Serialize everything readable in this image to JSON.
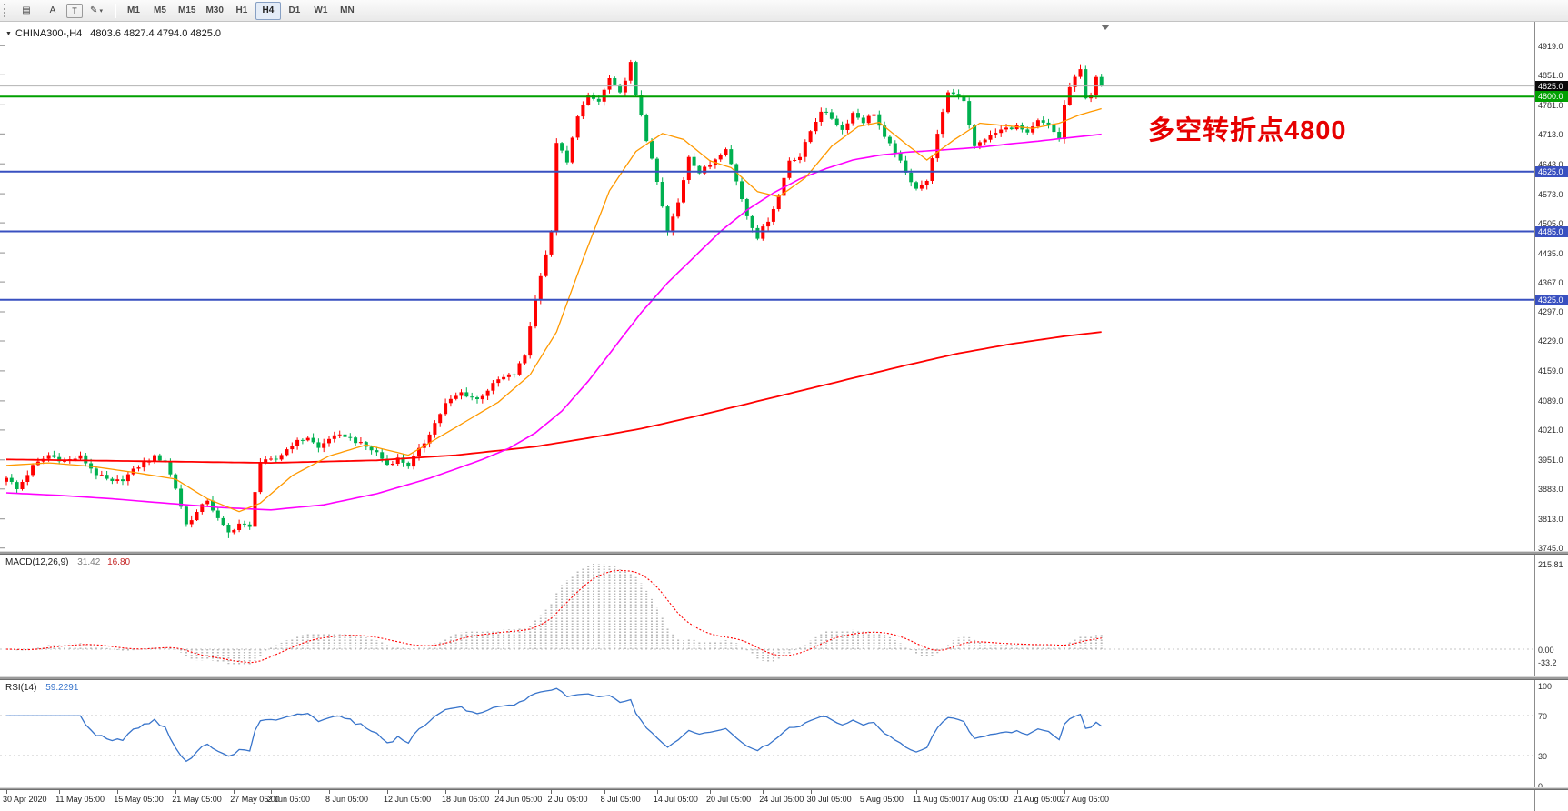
{
  "toolbar": {
    "tools": [
      {
        "name": "charts-grid",
        "glyph": "▤"
      },
      {
        "name": "cursor-a",
        "glyph": "A"
      },
      {
        "name": "text-tool",
        "glyph": "T",
        "boxed": true
      },
      {
        "name": "draw-tool",
        "glyph": "✎",
        "caret": "▾"
      }
    ],
    "timeframes": [
      {
        "label": "M1"
      },
      {
        "label": "M5"
      },
      {
        "label": "M15"
      },
      {
        "label": "M30"
      },
      {
        "label": "H1"
      },
      {
        "label": "H4",
        "active": true
      },
      {
        "label": "D1"
      },
      {
        "label": "W1"
      },
      {
        "label": "MN"
      }
    ]
  },
  "chart": {
    "title_symbol": "CHINA300-,H4",
    "title_ohlc": "4803.6 4827.4 4794.0 4825.0",
    "annotation_text": "多空转折点4800",
    "annotation_color": "#e60000"
  },
  "chart_data": {
    "type": "candlestick",
    "symbol": "CHINA300-",
    "timeframe": "H4",
    "bars": 208,
    "last_close": 4825.0,
    "ohlc_display": {
      "open": "4803.6",
      "high": "4827.4",
      "low": "4794.0",
      "close": "4825.0"
    },
    "price_axis": {
      "range": [
        3738,
        4975
      ],
      "ticks": [
        "4919.0",
        "4851.0",
        "4781.0",
        "4713.0",
        "4643.0",
        "4573.0",
        "4505.0",
        "4435.0",
        "4367.0",
        "4297.0",
        "4229.0",
        "4159.0",
        "4089.0",
        "4021.0",
        "3951.0",
        "3883.0",
        "3813.0",
        "3745.0"
      ],
      "badges": [
        {
          "text": "4825.0",
          "price": 4825,
          "bg": "#0a0a0a"
        },
        {
          "text": "4800.0",
          "price": 4800,
          "bg": "#00a000"
        },
        {
          "text": "4625.0",
          "price": 4625,
          "bg": "#3950c0"
        },
        {
          "text": "4485.0",
          "price": 4485,
          "bg": "#3950c0"
        },
        {
          "text": "4325.0",
          "price": 4325,
          "bg": "#3950c0"
        }
      ]
    },
    "hlines": [
      {
        "name": "current-price-line",
        "price": 4825,
        "color": "#b3b3b3",
        "width": 1
      },
      {
        "name": "green-level-4800",
        "price": 4800,
        "color": "#00a000",
        "width": 2
      },
      {
        "name": "blue-level-4625",
        "price": 4625,
        "color": "#3950c0",
        "width": 2
      },
      {
        "name": "blue-level-4485",
        "price": 4485,
        "color": "#3950c0",
        "width": 2
      },
      {
        "name": "blue-level-4325",
        "price": 4325,
        "color": "#3950c0",
        "width": 2
      }
    ],
    "close_waypoints": [
      [
        0,
        3912
      ],
      [
        2,
        3882
      ],
      [
        5,
        3936
      ],
      [
        8,
        3962
      ],
      [
        11,
        3948
      ],
      [
        14,
        3958
      ],
      [
        17,
        3918
      ],
      [
        20,
        3898
      ],
      [
        22,
        3906
      ],
      [
        25,
        3936
      ],
      [
        28,
        3958
      ],
      [
        30,
        3948
      ],
      [
        32,
        3885
      ],
      [
        34,
        3800
      ],
      [
        36,
        3828
      ],
      [
        38,
        3858
      ],
      [
        40,
        3812
      ],
      [
        42,
        3780
      ],
      [
        44,
        3802
      ],
      [
        46,
        3792
      ],
      [
        47,
        3880
      ],
      [
        48,
        3945
      ],
      [
        51,
        3952
      ],
      [
        54,
        3988
      ],
      [
        57,
        4004
      ],
      [
        59,
        3978
      ],
      [
        61,
        4002
      ],
      [
        64,
        4008
      ],
      [
        67,
        3988
      ],
      [
        70,
        3968
      ],
      [
        72,
        3940
      ],
      [
        74,
        3954
      ],
      [
        76,
        3938
      ],
      [
        79,
        3992
      ],
      [
        83,
        4082
      ],
      [
        86,
        4108
      ],
      [
        89,
        4092
      ],
      [
        93,
        4138
      ],
      [
        96,
        4152
      ],
      [
        98,
        4195
      ],
      [
        99,
        4265
      ],
      [
        101,
        4385
      ],
      [
        103,
        4480
      ],
      [
        104,
        4695
      ],
      [
        106,
        4645
      ],
      [
        108,
        4758
      ],
      [
        110,
        4800
      ],
      [
        112,
        4788
      ],
      [
        114,
        4842
      ],
      [
        116,
        4806
      ],
      [
        118,
        4878
      ],
      [
        119,
        4800
      ],
      [
        120,
        4758
      ],
      [
        121,
        4700
      ],
      [
        123,
        4600
      ],
      [
        125,
        4482
      ],
      [
        127,
        4552
      ],
      [
        129,
        4662
      ],
      [
        131,
        4622
      ],
      [
        133,
        4642
      ],
      [
        136,
        4682
      ],
      [
        138,
        4602
      ],
      [
        140,
        4522
      ],
      [
        142,
        4472
      ],
      [
        144,
        4512
      ],
      [
        146,
        4568
      ],
      [
        148,
        4652
      ],
      [
        150,
        4660
      ],
      [
        152,
        4720
      ],
      [
        154,
        4768
      ],
      [
        156,
        4750
      ],
      [
        158,
        4722
      ],
      [
        160,
        4762
      ],
      [
        162,
        4742
      ],
      [
        164,
        4762
      ],
      [
        166,
        4702
      ],
      [
        168,
        4672
      ],
      [
        170,
        4620
      ],
      [
        172,
        4588
      ],
      [
        174,
        4600
      ],
      [
        175,
        4660
      ],
      [
        177,
        4760
      ],
      [
        178,
        4812
      ],
      [
        180,
        4802
      ],
      [
        181,
        4792
      ],
      [
        183,
        4682
      ],
      [
        185,
        4702
      ],
      [
        188,
        4722
      ],
      [
        191,
        4732
      ],
      [
        193,
        4712
      ],
      [
        195,
        4742
      ],
      [
        197,
        4732
      ],
      [
        199,
        4702
      ],
      [
        200,
        4780
      ],
      [
        201,
        4822
      ],
      [
        203,
        4862
      ],
      [
        204,
        4800
      ],
      [
        205,
        4806
      ],
      [
        206,
        4842
      ],
      [
        207,
        4825
      ]
    ],
    "high_overrides": [
      [
        118,
        4886
      ],
      [
        203,
        4876
      ]
    ],
    "low_overrides": [
      [
        42,
        3768
      ]
    ],
    "ma_fast_orange": [
      [
        0,
        3938
      ],
      [
        8,
        3944
      ],
      [
        16,
        3936
      ],
      [
        24,
        3922
      ],
      [
        32,
        3906
      ],
      [
        38,
        3860
      ],
      [
        44,
        3830
      ],
      [
        48,
        3850
      ],
      [
        54,
        3914
      ],
      [
        61,
        3960
      ],
      [
        68,
        3986
      ],
      [
        76,
        3962
      ],
      [
        84,
        4020
      ],
      [
        93,
        4086
      ],
      [
        99,
        4150
      ],
      [
        104,
        4250
      ],
      [
        109,
        4420
      ],
      [
        114,
        4580
      ],
      [
        119,
        4672
      ],
      [
        124,
        4714
      ],
      [
        128,
        4700
      ],
      [
        133,
        4650
      ],
      [
        137,
        4634
      ],
      [
        142,
        4578
      ],
      [
        146,
        4566
      ],
      [
        151,
        4610
      ],
      [
        156,
        4684
      ],
      [
        161,
        4730
      ],
      [
        165,
        4740
      ],
      [
        170,
        4690
      ],
      [
        174,
        4652
      ],
      [
        179,
        4698
      ],
      [
        184,
        4738
      ],
      [
        189,
        4732
      ],
      [
        194,
        4726
      ],
      [
        199,
        4738
      ],
      [
        203,
        4758
      ],
      [
        207,
        4772
      ]
    ],
    "ma_mid_magenta": [
      [
        0,
        3874
      ],
      [
        10,
        3868
      ],
      [
        20,
        3860
      ],
      [
        30,
        3850
      ],
      [
        40,
        3840
      ],
      [
        50,
        3834
      ],
      [
        60,
        3846
      ],
      [
        70,
        3872
      ],
      [
        80,
        3908
      ],
      [
        90,
        3952
      ],
      [
        95,
        3978
      ],
      [
        100,
        4014
      ],
      [
        105,
        4065
      ],
      [
        110,
        4135
      ],
      [
        115,
        4215
      ],
      [
        120,
        4295
      ],
      [
        125,
        4365
      ],
      [
        130,
        4425
      ],
      [
        135,
        4485
      ],
      [
        140,
        4535
      ],
      [
        145,
        4575
      ],
      [
        150,
        4608
      ],
      [
        155,
        4632
      ],
      [
        160,
        4652
      ],
      [
        165,
        4663
      ],
      [
        170,
        4670
      ],
      [
        175,
        4674
      ],
      [
        180,
        4678
      ],
      [
        185,
        4683
      ],
      [
        190,
        4690
      ],
      [
        195,
        4696
      ],
      [
        200,
        4703
      ],
      [
        207,
        4712
      ]
    ],
    "ma_slow_red": [
      [
        0,
        3952
      ],
      [
        25,
        3948
      ],
      [
        50,
        3944
      ],
      [
        70,
        3950
      ],
      [
        85,
        3962
      ],
      [
        100,
        3982
      ],
      [
        110,
        4002
      ],
      [
        120,
        4024
      ],
      [
        130,
        4052
      ],
      [
        140,
        4082
      ],
      [
        150,
        4112
      ],
      [
        160,
        4142
      ],
      [
        170,
        4172
      ],
      [
        180,
        4200
      ],
      [
        190,
        4222
      ],
      [
        200,
        4240
      ],
      [
        207,
        4250
      ]
    ],
    "time_axis": [
      {
        "label": "30 Apr 2020",
        "bar": 0
      },
      {
        "label": "11 May 05:00",
        "bar": 10
      },
      {
        "label": "15 May 05:00",
        "bar": 21
      },
      {
        "label": "21 May 05:00",
        "bar": 32
      },
      {
        "label": "27 May 05:00",
        "bar": 43
      },
      {
        "label": "2 Jun 05:00",
        "bar": 50
      },
      {
        "label": "8 Jun 05:00",
        "bar": 61
      },
      {
        "label": "12 Jun 05:00",
        "bar": 72
      },
      {
        "label": "18 Jun 05:00",
        "bar": 83
      },
      {
        "label": "24 Jun 05:00",
        "bar": 93
      },
      {
        "label": "2 Jul 05:00",
        "bar": 103
      },
      {
        "label": "8 Jul 05:00",
        "bar": 113
      },
      {
        "label": "14 Jul 05:00",
        "bar": 123
      },
      {
        "label": "20 Jul 05:00",
        "bar": 133
      },
      {
        "label": "24 Jul 05:00",
        "bar": 143
      },
      {
        "label": "30 Jul 05:00",
        "bar": 152
      },
      {
        "label": "5 Aug 05:00",
        "bar": 162
      },
      {
        "label": "11 Aug 05:00",
        "bar": 172
      },
      {
        "label": "17 Aug 05:00",
        "bar": 181
      },
      {
        "label": "21 Aug 05:00",
        "bar": 191
      },
      {
        "label": "27 Aug 05:00",
        "bar": 200
      }
    ],
    "macd": {
      "name": "MACD(12,26,9)",
      "value_main": "31.42",
      "value_signal": "16.80",
      "params": [
        12,
        26,
        9
      ],
      "peak": 215.81,
      "axis_ticks": [
        {
          "text": "215.81",
          "value": 215.81
        },
        {
          "text": "0.00",
          "value": 0
        },
        {
          "text": "-33.2",
          "value": -33.2
        }
      ]
    },
    "rsi": {
      "name": "RSI(14)",
      "value": "59.2291",
      "period": 14,
      "levels": [
        70,
        30
      ],
      "axis_ticks": [
        {
          "text": "100",
          "value": 100
        },
        {
          "text": "70",
          "value": 70
        },
        {
          "text": "30",
          "value": 30
        },
        {
          "text": "0",
          "value": 0
        }
      ]
    },
    "colors": {
      "bull": "#ff0000",
      "bear": "#00b050",
      "ma_fast": "#ff9900",
      "ma_mid": "#ff00ff",
      "ma_slow": "#ff0000",
      "macd_hist": "#b8b8b8",
      "macd_signal": "#ff0000",
      "rsi_line": "#3874cb",
      "level_dotted": "#c4c4c4"
    }
  }
}
